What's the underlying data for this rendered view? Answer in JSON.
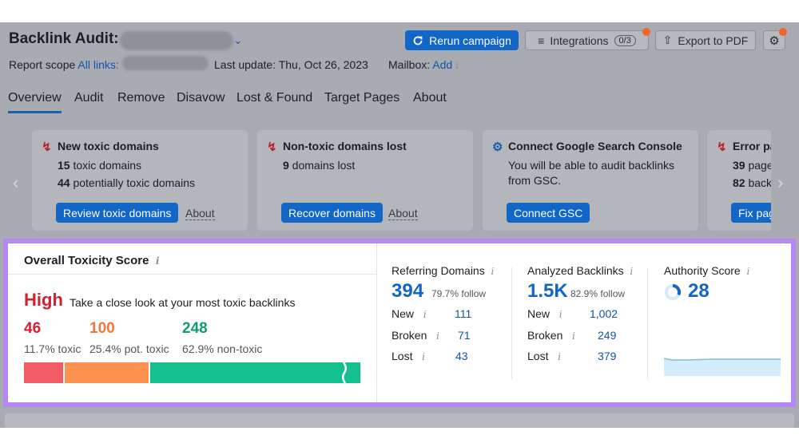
{
  "header": {
    "title": "Backlink Audit:",
    "rerun_label": "Rerun campaign",
    "integrations_label": "Integrations",
    "integrations_count": "0/3",
    "export_label": "Export to PDF",
    "report_scope_label": "Report scope",
    "report_scope_link": "All links:",
    "last_update": "Last update: Thu, Oct 26, 2023",
    "mailbox_label": "Mailbox:",
    "mailbox_link": "Add",
    "info_glyph": "i"
  },
  "tabs": [
    "Overview",
    "Audit",
    "Remove",
    "Disavow",
    "Lost & Found",
    "Target Pages",
    "About"
  ],
  "cards": [
    {
      "title": "New toxic domains",
      "line1_num": "15",
      "line1_text": " toxic domains",
      "line2_num": "44",
      "line2_text": " potentially toxic domains",
      "button": "Review toxic domains",
      "about": "About",
      "icon": "bolt-icon"
    },
    {
      "title": "Non-toxic domains lost",
      "line1_num": "9",
      "line1_text": " domains lost",
      "button": "Recover domains",
      "about": "About",
      "icon": "bolt-icon"
    },
    {
      "title": "Connect Google Search Console",
      "line1_text": "You will be able to audit backlinks",
      "line2_text": "from GSC.",
      "button": "Connect GSC",
      "icon": "gear-icon"
    },
    {
      "title": "Error pa",
      "line1_num": "39",
      "line1_text": " page",
      "line2_num": "82",
      "line2_text": " back",
      "button": "Fix pag",
      "icon": "bolt-icon"
    }
  ],
  "toxicity": {
    "title": "Overall Toxicity Score",
    "level": "High",
    "level_desc": "Take a close look at your most toxic backlinks",
    "toxic_num": "46",
    "toxic_pct": "11.7% toxic",
    "pot_num": "100",
    "pot_pct": "25.4% pot. toxic",
    "non_num": "248",
    "non_pct": "62.9% non-toxic",
    "bar_fractions": {
      "toxic": 0.117,
      "potentially_toxic": 0.254,
      "non_toxic": 0.629
    },
    "colors": {
      "toxic": "#f15b65",
      "potentially_toxic": "#fe9251",
      "non_toxic": "#15c08f",
      "high": "#d1202f"
    }
  },
  "referring": {
    "label": "Referring Domains",
    "value": "394",
    "follow": "79.7% follow",
    "new_label": "New",
    "new": "111",
    "broken_label": "Broken",
    "broken": "71",
    "lost_label": "Lost",
    "lost": "43"
  },
  "backlinks": {
    "label": "Analyzed Backlinks",
    "value": "1.5K",
    "follow": "82.9% follow",
    "new_label": "New",
    "new": "1,002",
    "broken_label": "Broken",
    "broken": "249",
    "lost_label": "Lost",
    "lost": "379"
  },
  "authority": {
    "label": "Authority Score",
    "value": "28"
  },
  "colors": {
    "accent": "#1166c6",
    "highlight_border": "#b487f2",
    "notification": "#f4652a"
  }
}
